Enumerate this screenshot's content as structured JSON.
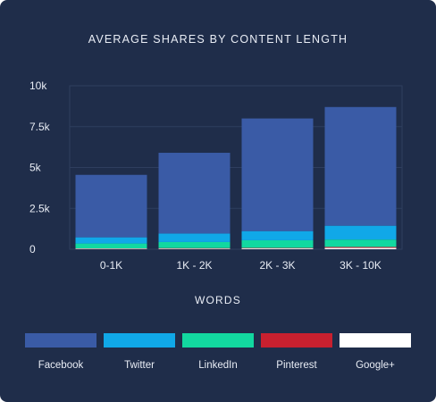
{
  "chart_data": {
    "type": "bar",
    "stacked": true,
    "title": "AVERAGE SHARES BY CONTENT LENGTH",
    "xlabel": "WORDS",
    "ylabel": "",
    "categories": [
      "0-1K",
      "1K - 2K",
      "2K - 3K",
      "3K - 10K"
    ],
    "ylim": [
      0,
      10000
    ],
    "yticks": [
      0,
      2500,
      5000,
      7500,
      10000
    ],
    "ytick_labels": [
      "0",
      "2.5k",
      "5k",
      "7.5k",
      "10k"
    ],
    "grid": true,
    "legend_placement": "bottom",
    "series": [
      {
        "name": "Google+",
        "color": "#ffffff",
        "values": [
          30,
          40,
          50,
          80
        ]
      },
      {
        "name": "Pinterest",
        "color": "#c8202f",
        "values": [
          20,
          30,
          30,
          60
        ]
      },
      {
        "name": "LinkedIn",
        "color": "#12d8a0",
        "values": [
          300,
          370,
          470,
          450
        ]
      },
      {
        "name": "Twitter",
        "color": "#10a8e8",
        "values": [
          380,
          520,
          560,
          850
        ]
      },
      {
        "name": "Facebook",
        "color": "#3a5ba6",
        "values": [
          3820,
          4940,
          6890,
          7260
        ]
      }
    ]
  },
  "legend": [
    {
      "label": "Facebook",
      "color": "#3a5ba6"
    },
    {
      "label": "Twitter",
      "color": "#10a8e8"
    },
    {
      "label": "LinkedIn",
      "color": "#12d8a0"
    },
    {
      "label": "Pinterest",
      "color": "#c8202f"
    },
    {
      "label": "Google+",
      "color": "#ffffff"
    }
  ]
}
